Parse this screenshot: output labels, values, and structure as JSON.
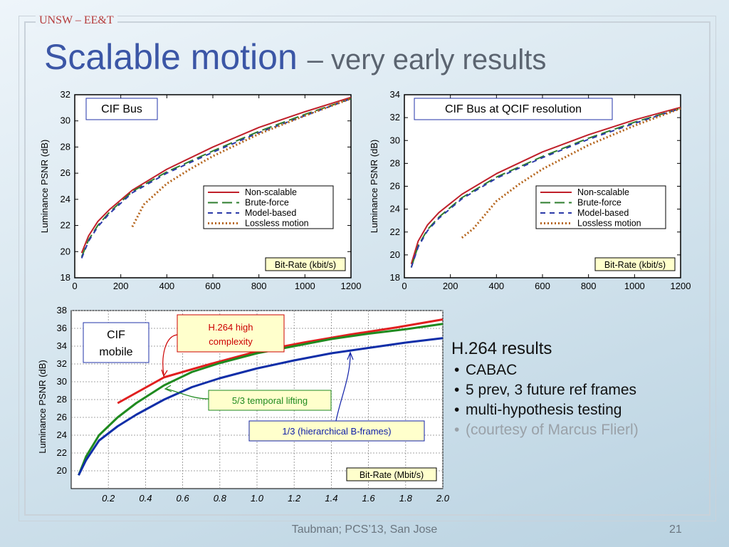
{
  "brand": "UNSW – EE&T",
  "title": {
    "main": "Scalable motion",
    "sub": "– very early results"
  },
  "colors": {
    "non_scalable": "#c0202a",
    "brute_force": "#2e7d2e",
    "model_based": "#2b3aa8",
    "lossless": "#b5651d",
    "green": "#1f8a1f",
    "blue": "#102ea8",
    "red": "#e01f1f"
  },
  "chart_data": [
    {
      "type": "line",
      "box_label": "CIF Bus",
      "xlabel": "Bit-Rate (kbit/s)",
      "ylabel": "Luminance PSNR (dB)",
      "xlim": [
        0,
        1200
      ],
      "ylim": [
        18,
        32
      ],
      "xticks": [
        "0",
        "200",
        "400",
        "600",
        "800",
        "1000",
        "1200"
      ],
      "yticks": [
        "18",
        "20",
        "22",
        "24",
        "26",
        "28",
        "30",
        "32"
      ],
      "legend_position": "center-right",
      "series": [
        {
          "name": "Non-scalable",
          "style": "solid",
          "x": [
            30,
            60,
            100,
            150,
            250,
            400,
            600,
            800,
            1000,
            1200
          ],
          "y": [
            19.9,
            21.2,
            22.3,
            23.2,
            24.7,
            26.3,
            28.0,
            29.5,
            30.7,
            31.8
          ]
        },
        {
          "name": "Brute-force",
          "style": "dash",
          "x": [
            30,
            60,
            100,
            150,
            250,
            400,
            600,
            800,
            1000,
            1200
          ],
          "y": [
            19.6,
            20.9,
            22.0,
            23.0,
            24.6,
            26.1,
            27.7,
            29.2,
            30.5,
            31.7
          ]
        },
        {
          "name": "Model-based",
          "style": "dash2",
          "x": [
            30,
            60,
            100,
            150,
            250,
            400,
            600,
            800,
            1000,
            1200
          ],
          "y": [
            19.5,
            20.8,
            21.9,
            22.9,
            24.5,
            26.0,
            27.6,
            29.1,
            30.4,
            31.7
          ]
        },
        {
          "name": "Lossless motion",
          "style": "dot",
          "x": [
            250,
            300,
            400,
            500,
            600,
            800,
            1000,
            1200
          ],
          "y": [
            21.9,
            23.6,
            25.2,
            26.3,
            27.3,
            29.0,
            30.4,
            31.7
          ]
        }
      ]
    },
    {
      "type": "line",
      "box_label": "CIF Bus at QCIF resolution",
      "xlabel": "Bit-Rate (kbit/s)",
      "ylabel": "Luminance PSNR (dB)",
      "xlim": [
        0,
        1200
      ],
      "ylim": [
        18,
        34
      ],
      "xticks": [
        "0",
        "200",
        "400",
        "600",
        "800",
        "1000",
        "1200"
      ],
      "yticks": [
        "18",
        "20",
        "22",
        "24",
        "26",
        "28",
        "30",
        "32",
        "34"
      ],
      "legend_position": "center-right",
      "series": [
        {
          "name": "Non-scalable",
          "style": "solid",
          "x": [
            30,
            60,
            100,
            150,
            250,
            400,
            600,
            800,
            1000,
            1200
          ],
          "y": [
            19.2,
            21.2,
            22.6,
            23.7,
            25.3,
            27.1,
            29.0,
            30.5,
            31.8,
            32.9
          ]
        },
        {
          "name": "Brute-force",
          "style": "dash",
          "x": [
            30,
            60,
            100,
            150,
            250,
            400,
            600,
            800,
            1000,
            1200
          ],
          "y": [
            18.9,
            20.8,
            22.2,
            23.3,
            25.0,
            26.8,
            28.6,
            30.2,
            31.6,
            32.8
          ]
        },
        {
          "name": "Model-based",
          "style": "dash2",
          "x": [
            30,
            60,
            100,
            150,
            250,
            400,
            600,
            800,
            1000,
            1200
          ],
          "y": [
            18.9,
            20.7,
            22.1,
            23.2,
            24.9,
            26.7,
            28.5,
            30.1,
            31.5,
            32.8
          ]
        },
        {
          "name": "Lossless motion",
          "style": "dot",
          "x": [
            250,
            300,
            400,
            500,
            600,
            800,
            1000,
            1200
          ],
          "y": [
            21.5,
            22.3,
            24.7,
            26.2,
            27.5,
            29.6,
            31.3,
            32.8
          ]
        }
      ]
    },
    {
      "type": "line",
      "box_label": "CIF mobile",
      "xlabel": "Bit-Rate (Mbit/s)",
      "ylabel": "Luminance PSNR (dB)",
      "xlim": [
        0,
        2.0
      ],
      "ylim": [
        18,
        38
      ],
      "xticks": [
        "0.2",
        "0.4",
        "0.6",
        "0.8",
        "1.0",
        "1.2",
        "1.4",
        "1.6",
        "1.8",
        "2.0"
      ],
      "yticks": [
        "20",
        "22",
        "24",
        "26",
        "28",
        "30",
        "32",
        "34",
        "36",
        "38"
      ],
      "annotations": [
        "H.264 high complexity",
        "5/3 temporal lifting",
        "1/3 (hierarchical B-frames)"
      ],
      "series": [
        {
          "label": "H.264 high complexity",
          "color": "red",
          "x": [
            0.25,
            0.5,
            0.75,
            1.0,
            1.25,
            1.5,
            1.75,
            2.0
          ],
          "y": [
            27.6,
            30.5,
            32.0,
            33.4,
            34.4,
            35.3,
            36.1,
            37.0
          ]
        },
        {
          "label": "5/3 temporal lifting",
          "color": "green",
          "x": [
            0.04,
            0.08,
            0.15,
            0.25,
            0.35,
            0.5,
            0.65,
            0.8,
            1.0,
            1.2,
            1.4,
            1.6,
            1.8,
            2.0
          ],
          "y": [
            19.5,
            21.6,
            24.0,
            26.0,
            27.6,
            29.6,
            31.1,
            32.1,
            33.2,
            34.0,
            34.8,
            35.4,
            35.9,
            36.5
          ]
        },
        {
          "label": "1/3 (hierarchical B-frames)",
          "color": "blue",
          "x": [
            0.04,
            0.08,
            0.15,
            0.25,
            0.35,
            0.5,
            0.65,
            0.8,
            1.0,
            1.2,
            1.4,
            1.6,
            1.8,
            2.0
          ],
          "y": [
            19.5,
            21.2,
            23.4,
            25.0,
            26.3,
            28.0,
            29.4,
            30.4,
            31.5,
            32.4,
            33.2,
            33.8,
            34.4,
            34.9
          ]
        }
      ]
    }
  ],
  "bullets": {
    "heading": "H.264 results",
    "items": [
      {
        "text": "CABAC",
        "muted": false
      },
      {
        "text": "5 prev, 3 future ref frames",
        "muted": false
      },
      {
        "text": "multi-hypothesis testing",
        "muted": false
      },
      {
        "text": "(courtesy of Marcus Flierl)",
        "muted": true
      }
    ]
  },
  "footer": "Taubman; PCS’13, San Jose",
  "page_number": "21"
}
